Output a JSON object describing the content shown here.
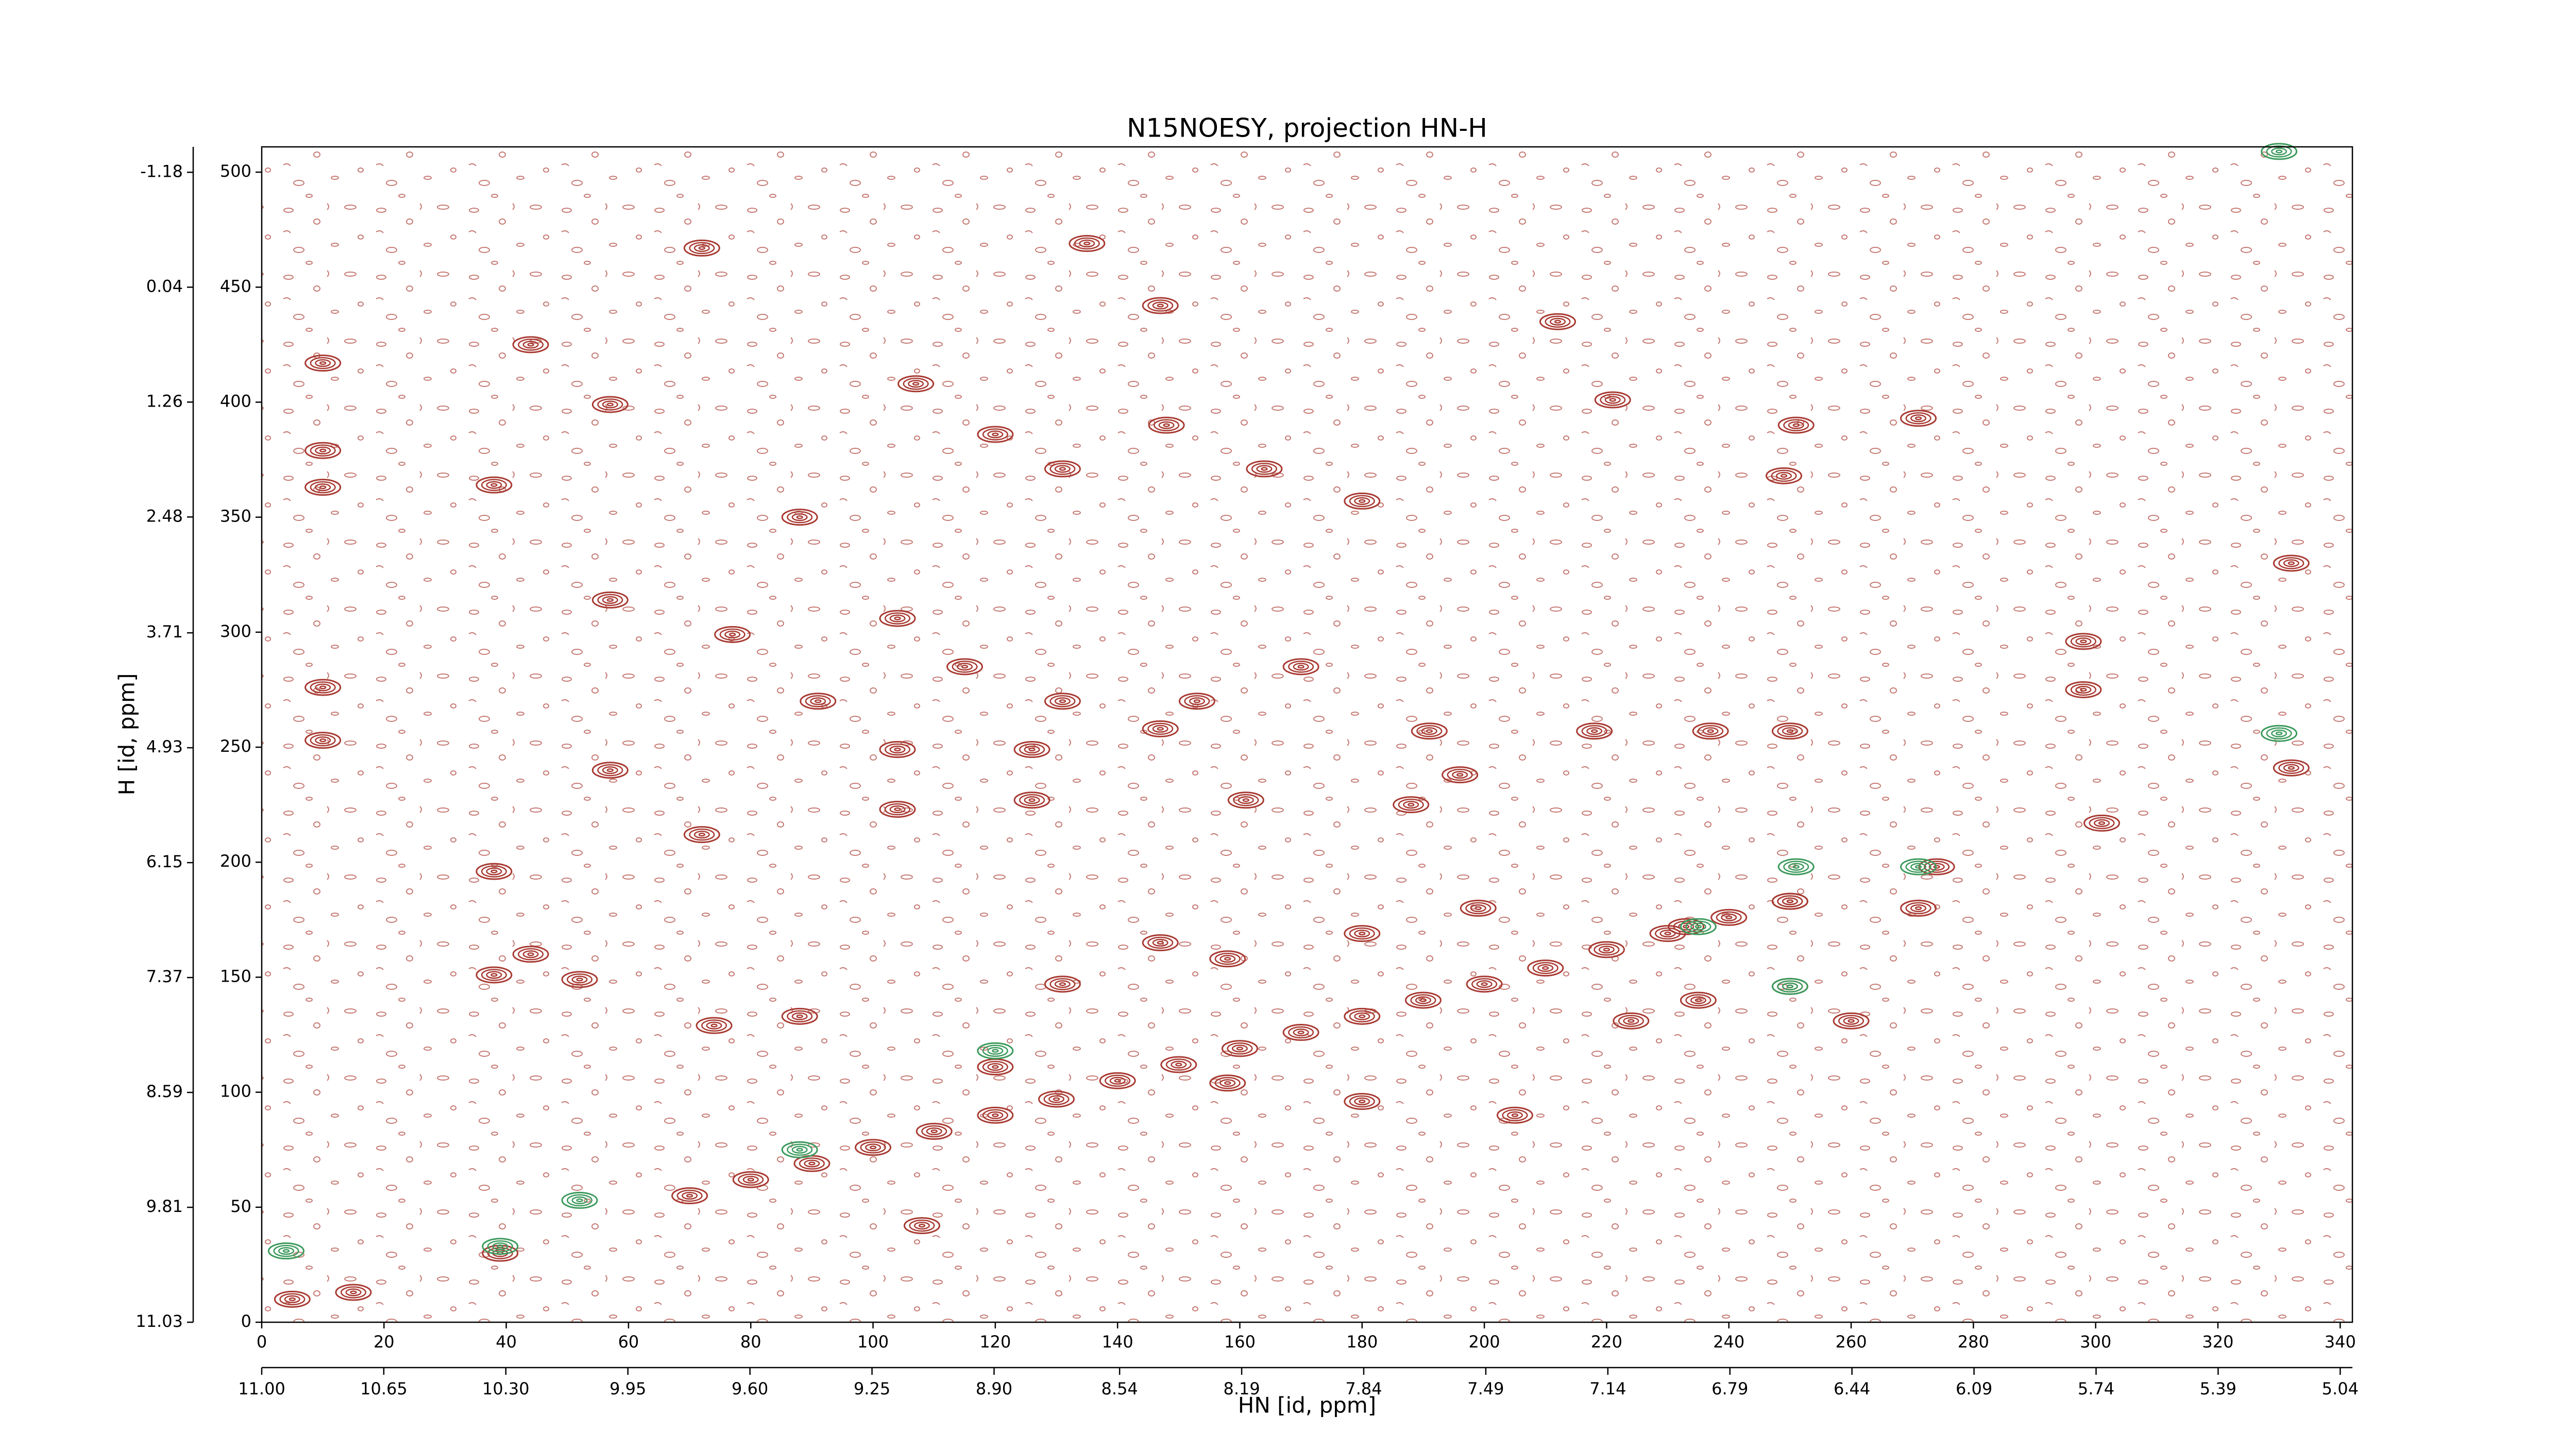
{
  "chart_data": {
    "type": "contour",
    "title": "N15NOESY, projection HN-H",
    "xlabel": "HN [id, ppm]",
    "ylabel": "H [id, ppm]",
    "xlim": [
      0,
      342
    ],
    "ylim": [
      0,
      511
    ],
    "xticks": [
      0,
      20,
      40,
      60,
      80,
      100,
      120,
      140,
      160,
      180,
      200,
      220,
      240,
      260,
      280,
      300,
      320,
      340
    ],
    "yticks": [
      0,
      50,
      100,
      150,
      200,
      250,
      300,
      350,
      400,
      450,
      500
    ],
    "x2lim": [
      11.0,
      5.005
    ],
    "x2ticks": [
      {
        "value": 11.0,
        "label": "11.00"
      },
      10.65,
      {
        "value": 10.3,
        "label": "10.30"
      },
      9.95,
      {
        "value": 9.6,
        "label": "9.60"
      },
      9.25,
      {
        "value": 8.9,
        "label": "8.90"
      },
      8.54,
      8.19,
      7.84,
      7.49,
      7.14,
      6.79,
      6.44,
      6.09,
      5.74,
      5.39,
      5.04
    ],
    "y2lim": [
      11.03,
      -1.45
    ],
    "y2ticks": [
      11.03,
      9.81,
      8.59,
      7.37,
      6.15,
      4.93,
      3.71,
      2.48,
      1.26,
      0.04,
      -1.18
    ],
    "series": [
      {
        "color": "#a83a32",
        "x": [
          5,
          15,
          39,
          70,
          80,
          90,
          100,
          110,
          120,
          130,
          140,
          150,
          160,
          170,
          180,
          190,
          200,
          210,
          220,
          230,
          240,
          250,
          274,
          10,
          10,
          10,
          10,
          10,
          57,
          57,
          57,
          38,
          38,
          38,
          44,
          52,
          44,
          72,
          135,
          147,
          212,
          107,
          120,
          131,
          148,
          164,
          180,
          104,
          115,
          131,
          153,
          170,
          104,
          126,
          147,
          191,
          218,
          237,
          250,
          104,
          126,
          161,
          188,
          196,
          301,
          332,
          332,
          298,
          298,
          249,
          271,
          251,
          221,
          147,
          158,
          180,
          199,
          233,
          250,
          271,
          250,
          235,
          260,
          224,
          131,
          120,
          158,
          180,
          205,
          108,
          88,
          74,
          72,
          77,
          88,
          91
        ],
        "values": [
          10,
          13,
          30,
          55,
          62,
          69,
          76,
          83,
          90,
          97,
          105,
          112,
          119,
          126,
          133,
          140,
          147,
          154,
          162,
          169,
          176,
          183,
          198,
          417,
          379,
          363,
          276,
          253,
          399,
          314,
          240,
          364,
          196,
          151,
          160,
          149,
          425,
          467,
          469,
          442,
          435,
          408,
          386,
          371,
          390,
          371,
          357,
          306,
          285,
          270,
          270,
          285,
          249,
          249,
          258,
          257,
          257,
          257,
          257,
          223,
          227,
          227,
          225,
          238,
          217,
          330,
          241,
          296,
          275,
          368,
          393,
          390,
          401,
          165,
          158,
          169,
          180,
          172,
          183,
          180,
          146,
          140,
          131,
          131,
          147,
          111,
          104,
          96,
          90,
          42,
          133,
          129,
          212,
          299,
          350,
          270
        ]
      },
      {
        "color": "#3c9a5c",
        "x": [
          251,
          250,
          271,
          235,
          120,
          88,
          52,
          39,
          4,
          330,
          330
        ],
        "values": [
          198,
          146,
          198,
          172,
          118,
          75,
          53,
          33,
          31,
          256,
          509
        ]
      }
    ]
  }
}
